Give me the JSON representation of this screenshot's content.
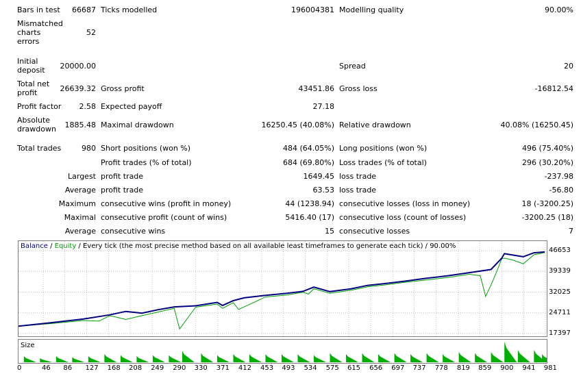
{
  "report": {
    "bars_in_test": {
      "label": "Bars in test",
      "value": "66687"
    },
    "ticks_modelled": {
      "label": "Ticks modelled",
      "value": "196004381"
    },
    "modelling_quality": {
      "label": "Modelling quality",
      "value": "90.00%"
    },
    "mismatched": {
      "label": "Mismatched charts errors",
      "value": "52"
    },
    "initial_deposit": {
      "label": "Initial deposit",
      "value": "20000.00"
    },
    "spread": {
      "label": "Spread",
      "value": "20"
    },
    "total_net_profit": {
      "label": "Total net profit",
      "value": "26639.32"
    },
    "gross_profit": {
      "label": "Gross profit",
      "value": "43451.86"
    },
    "gross_loss": {
      "label": "Gross loss",
      "value": "-16812.54"
    },
    "profit_factor": {
      "label": "Profit factor",
      "value": "2.58"
    },
    "expected_payoff": {
      "label": "Expected payoff",
      "value": "27.18"
    },
    "absolute_drawdown": {
      "label": "Absolute drawdown",
      "value": "1885.48"
    },
    "maximal_drawdown": {
      "label": "Maximal drawdown",
      "value": "16250.45 (40.08%)"
    },
    "relative_drawdown": {
      "label": "Relative drawdown",
      "value": "40.08% (16250.45)"
    },
    "total_trades": {
      "label": "Total trades",
      "value": "980"
    },
    "short_positions": {
      "label": "Short positions (won %)",
      "value": "484 (64.05%)"
    },
    "long_positions": {
      "label": "Long positions (won %)",
      "value": "496 (75.40%)"
    },
    "profit_trades": {
      "label": "Profit trades (% of total)",
      "value": "684 (69.80%)"
    },
    "loss_trades": {
      "label": "Loss trades (% of total)",
      "value": "296 (30.20%)"
    },
    "largest": {
      "label": "Largest",
      "profit_label": "profit trade",
      "profit_value": "1649.45",
      "loss_label": "loss trade",
      "loss_value": "-237.98"
    },
    "average": {
      "label": "Average",
      "profit_label": "profit trade",
      "profit_value": "63.53",
      "loss_label": "loss trade",
      "loss_value": "-56.80"
    },
    "maximum": {
      "label": "Maximum",
      "wins_label": "consecutive wins (profit in money)",
      "wins_value": "44 (1238.94)",
      "losses_label": "consecutive losses (loss in money)",
      "losses_value": "18 (-3200.25)"
    },
    "maximal": {
      "label": "Maximal",
      "profit_label": "consecutive profit (count of wins)",
      "profit_value": "5416.40 (17)",
      "loss_label": "consecutive loss (count of losses)",
      "loss_value": "-3200.25 (18)"
    },
    "average_consec": {
      "label": "Average",
      "wins_label": "consecutive wins",
      "wins_value": "15",
      "losses_label": "consecutive losses",
      "losses_value": "7"
    }
  },
  "chart": {
    "legend_balance": "Balance",
    "legend_sep": " / ",
    "legend_equity": "Equity",
    "legend_rest": " / Every tick (the most precise method based on all available least timeframes to generate each tick) / 90.00%",
    "size_label": "Size",
    "y_ticks": [
      "46653",
      "39339",
      "32025",
      "24711",
      "17397"
    ],
    "x_ticks": [
      "0",
      "46",
      "86",
      "127",
      "168",
      "208",
      "249",
      "290",
      "330",
      "371",
      "412",
      "453",
      "493",
      "534",
      "575",
      "615",
      "656",
      "697",
      "737",
      "778",
      "819",
      "859",
      "900",
      "941",
      "981"
    ],
    "colors": {
      "balance": "#000080",
      "equity": "#00a000",
      "size": "#00b000",
      "grid": "#c0c0c0"
    }
  },
  "chart_data": {
    "type": "line",
    "x_range": [
      0,
      980
    ],
    "y_range": [
      17397,
      46653
    ],
    "series": [
      {
        "name": "Balance",
        "x": [
          0,
          60,
          120,
          170,
          200,
          230,
          260,
          290,
          330,
          370,
          380,
          400,
          420,
          460,
          500,
          530,
          550,
          580,
          620,
          650,
          680,
          720,
          760,
          800,
          880,
          900,
          905,
          940,
          960,
          980
        ],
        "y": [
          20000,
          21200,
          22500,
          24000,
          25200,
          24600,
          25800,
          26800,
          27200,
          28400,
          27300,
          29000,
          30000,
          30900,
          31600,
          32300,
          33800,
          32200,
          33200,
          34400,
          35000,
          35900,
          36900,
          37800,
          40000,
          44000,
          45600,
          44500,
          45900,
          46200
        ]
      },
      {
        "name": "Equity",
        "x": [
          0,
          60,
          120,
          150,
          170,
          200,
          230,
          260,
          290,
          300,
          330,
          370,
          380,
          400,
          410,
          460,
          500,
          530,
          540,
          550,
          580,
          620,
          650,
          680,
          720,
          760,
          800,
          840,
          860,
          870,
          880,
          890,
          900,
          905,
          920,
          940,
          960,
          980
        ],
        "y": [
          20000,
          20900,
          22000,
          21800,
          23700,
          22400,
          23700,
          25000,
          26300,
          19000,
          26700,
          27800,
          26300,
          28300,
          25900,
          30300,
          31000,
          32000,
          31300,
          33200,
          31600,
          32700,
          33900,
          34500,
          35500,
          36300,
          37200,
          38300,
          37800,
          30500,
          34500,
          39000,
          43800,
          44000,
          43400,
          42000,
          45200,
          46000
        ]
      }
    ],
    "size_bars": {
      "x": [
        10,
        40,
        70,
        100,
        130,
        160,
        190,
        220,
        250,
        280,
        305,
        340,
        370,
        400,
        430,
        460,
        490,
        520,
        550,
        580,
        610,
        640,
        670,
        700,
        730,
        760,
        790,
        820,
        850,
        880,
        905,
        930,
        960,
        975
      ],
      "values": [
        0.3,
        0.2,
        0.3,
        0.25,
        0.3,
        0.4,
        0.35,
        0.3,
        0.35,
        0.35,
        0.55,
        0.45,
        0.35,
        0.4,
        0.4,
        0.4,
        0.4,
        0.4,
        0.35,
        0.45,
        0.4,
        0.45,
        0.4,
        0.45,
        0.4,
        0.45,
        0.4,
        0.5,
        0.45,
        0.5,
        1.0,
        0.6,
        0.6,
        0.4
      ]
    }
  }
}
